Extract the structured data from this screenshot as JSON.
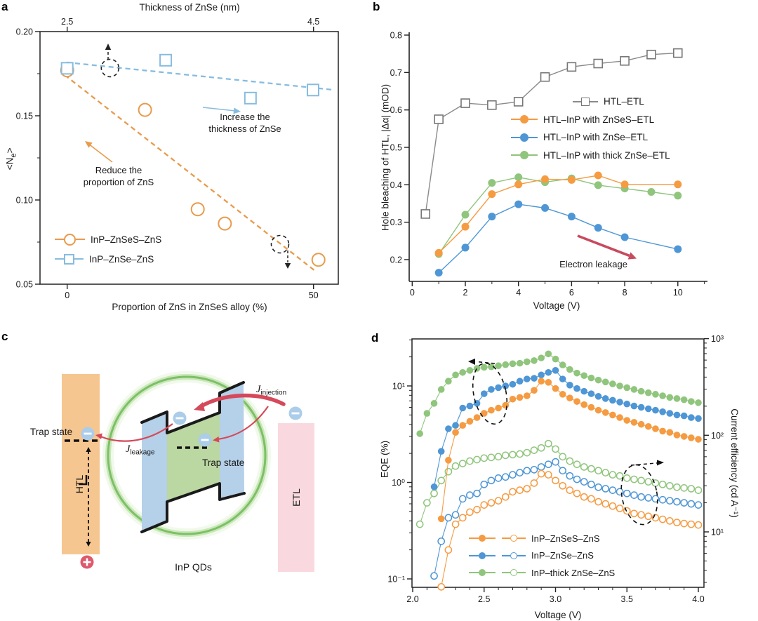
{
  "panels": {
    "a": {
      "letter": "a"
    },
    "b": {
      "letter": "b"
    },
    "c": {
      "letter": "c",
      "trap_state_left": "Trap state",
      "trap_state_core": "Trap state",
      "htl": "HTL",
      "etl": "ETL",
      "inp_qds": "InP QDs",
      "j_injection_main": "J",
      "j_injection_sub": "injection",
      "j_leakage_main": "J",
      "j_leakage_sub": "leakage",
      "colors": {
        "htl": "#F6C690",
        "etl": "#F9D9DF",
        "shell": "#B5D0E9",
        "core": "#BBD7A2",
        "ring": "#7CC066",
        "ring_glow1": "#ABD893",
        "ring_glow2": "#D6EDC7",
        "electron": "#ABCDEA",
        "hole": "#E0586C",
        "arrow": "#D5495A"
      }
    },
    "d": {
      "letter": "d"
    }
  },
  "chart_data": [
    {
      "id": "a",
      "type": "scatter",
      "title": "",
      "xlabel": "Proportion of ZnS in ZnSeS alloy (%)",
      "x2label": "Thickness of ZnSe (nm)",
      "ylabel_pre": "<N",
      "ylabel_sub": "e",
      "ylabel_post": ">",
      "xlim": [
        -5.5,
        55
      ],
      "ylim": [
        0.05,
        0.2
      ],
      "grid": false,
      "legend_position": "lower-left",
      "yticks": [
        {
          "v": 0.05,
          "l": "0.05"
        },
        {
          "v": 0.1,
          "l": "0.10"
        },
        {
          "v": 0.15,
          "l": "0.15"
        },
        {
          "v": 0.2,
          "l": "0.20"
        }
      ],
      "yticks_minor": [
        0.075,
        0.125,
        0.175
      ],
      "xticks": [
        {
          "v": 0,
          "l": "0"
        },
        {
          "v": 50,
          "l": "50"
        }
      ],
      "x2ticks": [
        {
          "v": 0,
          "l": "2.5"
        },
        {
          "v": 50,
          "l": "4.5"
        }
      ],
      "series": [
        {
          "name": "InP–ZnSeS–ZnS",
          "marker": "circle-open",
          "color": "#E89B4C",
          "points": [
            [
              0,
              0.177
            ],
            [
              15.8,
              0.1535
            ],
            [
              26.5,
              0.0945
            ],
            [
              32,
              0.086
            ],
            [
              51,
              0.0645
            ]
          ],
          "trend": [
            [
              -0.5,
              0.1742
            ],
            [
              50.5,
              0.0575
            ]
          ]
        },
        {
          "name": "InP–ZnSe–ZnS",
          "marker": "square-open",
          "color": "#87BCE0",
          "points": [
            [
              0,
              0.1782
            ],
            [
              20,
              0.183
            ],
            [
              37.2,
              0.1605
            ],
            [
              49.9,
              0.1653
            ]
          ],
          "trend": [
            [
              -0.1,
              0.1817
            ],
            [
              53.7,
              0.1655
            ]
          ]
        }
      ],
      "highlights": [
        {
          "x": 8.7,
          "y": 0.1783,
          "arrow": "up"
        },
        {
          "x": 43.2,
          "y": 0.0737,
          "arrow": "down"
        }
      ],
      "annotations": {
        "increase": [
          "Increase the",
          "thickness of ZnSe"
        ],
        "reduce": [
          "Reduce the",
          "proportion of ZnS"
        ]
      }
    },
    {
      "id": "b",
      "type": "line",
      "title": "",
      "xlabel": "Voltage (V)",
      "ylabel": "Hole bleaching of HTL, |Δα| (mOD)",
      "xlim": [
        -0.1,
        11.1
      ],
      "ylim": [
        0.14,
        0.81
      ],
      "grid": false,
      "legend_position": "upper-right",
      "arrow_color": "#C84A5E",
      "yticks": [
        {
          "v": 0.2,
          "l": "0.2"
        },
        {
          "v": 0.3,
          "l": "0.3"
        },
        {
          "v": 0.4,
          "l": "0.4"
        },
        {
          "v": 0.5,
          "l": "0.5"
        },
        {
          "v": 0.6,
          "l": "0.6"
        },
        {
          "v": 0.7,
          "l": "0.7"
        },
        {
          "v": 0.8,
          "l": "0.8"
        }
      ],
      "xticks": [
        {
          "v": 0,
          "l": "0"
        },
        {
          "v": 2,
          "l": "2"
        },
        {
          "v": 4,
          "l": "4"
        },
        {
          "v": 6,
          "l": "6"
        },
        {
          "v": 8,
          "l": "8"
        },
        {
          "v": 10,
          "l": "10"
        }
      ],
      "xticks_minor": [
        1,
        3,
        5,
        7,
        9,
        11
      ],
      "series": [
        {
          "name": "HTL–ETL",
          "color": "#8A8A8A",
          "marker": "square-open",
          "points": [
            [
              0.5,
              0.322
            ],
            [
              1,
              0.575
            ],
            [
              2,
              0.618
            ],
            [
              3,
              0.613
            ],
            [
              4,
              0.622
            ],
            [
              5,
              0.688
            ],
            [
              6,
              0.715
            ],
            [
              7,
              0.724
            ],
            [
              8,
              0.731
            ],
            [
              9,
              0.748
            ],
            [
              10,
              0.752
            ]
          ]
        },
        {
          "name": "HTL–InP with thick ZnSe–ETL",
          "color": "#8FC57C",
          "marker": "circle",
          "points": [
            [
              1,
              0.215
            ],
            [
              2,
              0.32
            ],
            [
              3,
              0.405
            ],
            [
              4,
              0.42
            ],
            [
              5,
              0.407
            ],
            [
              6,
              0.417
            ],
            [
              7,
              0.399
            ],
            [
              8,
              0.39
            ],
            [
              9,
              0.381
            ],
            [
              10,
              0.371
            ]
          ]
        },
        {
          "name": "HTL–InP with ZnSeS–ETL",
          "color": "#F59B42",
          "marker": "circle",
          "points": [
            [
              1,
              0.218
            ],
            [
              2,
              0.288
            ],
            [
              3,
              0.375
            ],
            [
              4,
              0.401
            ],
            [
              5,
              0.415
            ],
            [
              6,
              0.413
            ],
            [
              7,
              0.425
            ],
            [
              8,
              0.401
            ],
            [
              10,
              0.401
            ]
          ]
        },
        {
          "name": "HTL–InP with ZnSe–ETL",
          "color": "#4E96D5",
          "marker": "circle",
          "points": [
            [
              1,
              0.165
            ],
            [
              2,
              0.232
            ],
            [
              3,
              0.315
            ],
            [
              4,
              0.348
            ],
            [
              5,
              0.338
            ],
            [
              6,
              0.315
            ],
            [
              7,
              0.285
            ],
            [
              8,
              0.26
            ],
            [
              10,
              0.228
            ]
          ]
        }
      ],
      "legend_order": [
        "HTL–ETL",
        "HTL–InP with ZnSeS–ETL",
        "HTL–InP with ZnSe–ETL",
        "HTL–InP with thick ZnSe–ETL"
      ],
      "annotations": {
        "leakage": "Electron leakage"
      }
    },
    {
      "id": "d",
      "type": "line",
      "title": "",
      "xlabel": "Voltage (V)",
      "ylabel_left": "EQE (%)",
      "ylabel_right": "Current efficiency (cd A⁻¹)",
      "xlim": [
        2.0,
        4.04
      ],
      "ylim_left": [
        0.08,
        31
      ],
      "ylim_right": [
        2.7,
        1000
      ],
      "yscale": "log",
      "grid": false,
      "legend_position": "lower-center",
      "xticks": [
        {
          "v": 2,
          "l": "2.0"
        },
        {
          "v": 2.5,
          "l": "2.5"
        },
        {
          "v": 3,
          "l": "3.0"
        },
        {
          "v": 3.5,
          "l": "3.5"
        },
        {
          "v": 4,
          "l": "4.0"
        }
      ],
      "xticks_minor": [
        2.1,
        2.2,
        2.3,
        2.4,
        2.6,
        2.7,
        2.8,
        2.9,
        3.1,
        3.2,
        3.3,
        3.4,
        3.6,
        3.7,
        3.8,
        3.9
      ],
      "yticks_left": [
        {
          "v": 0.1,
          "l": "10⁻¹"
        },
        {
          "v": 1,
          "l": "10⁰"
        },
        {
          "v": 10,
          "l": "10¹"
        }
      ],
      "yticks_left_minor": [
        0.2,
        0.3,
        0.4,
        0.5,
        0.6,
        0.7,
        0.8,
        0.9,
        2,
        3,
        4,
        5,
        6,
        7,
        8,
        9,
        20,
        30
      ],
      "yticks_right": [
        {
          "v": 10,
          "l": "10¹"
        },
        {
          "v": 100,
          "l": "10²"
        },
        {
          "v": 1000,
          "l": "10³"
        }
      ],
      "yticks_right_minor": [
        3,
        4,
        5,
        6,
        7,
        8,
        9,
        20,
        30,
        40,
        50,
        60,
        70,
        80,
        90,
        200,
        300,
        400,
        500,
        600,
        700,
        800,
        900
      ],
      "legend": [
        {
          "label": "InP–ZnSeS–ZnS",
          "color": "#F59B42"
        },
        {
          "label": "InP–ZnSe–ZnS",
          "color": "#4E96D5"
        },
        {
          "label": "InP–thick ZnSe–ZnS",
          "color": "#8FC57C"
        }
      ],
      "series": [
        {
          "name": "InP–thick ZnSe–ZnS current efficiency",
          "color": "#8FC57C",
          "axis": "right",
          "marker": "open",
          "x0": 2.05,
          "dx": 0.05,
          "values": [
            12,
            20,
            25,
            34,
            42,
            48,
            51,
            54,
            56,
            58,
            59,
            60,
            62,
            63,
            64,
            66,
            70,
            74,
            82,
            72,
            60,
            54,
            50,
            47,
            45,
            43,
            41,
            39,
            38,
            36,
            35,
            34,
            33,
            32,
            31,
            30,
            29,
            28.5,
            28,
            27
          ]
        },
        {
          "name": "InP–ZnSe–ZnS current efficiency",
          "color": "#4E96D5",
          "axis": "right",
          "marker": "open",
          "x0": 2.15,
          "dx": 0.05,
          "values": [
            3.5,
            8,
            14,
            15,
            22,
            24,
            25,
            31,
            34,
            36,
            37,
            39,
            41,
            43,
            44,
            47,
            50,
            53,
            43,
            38,
            35,
            33,
            31,
            29,
            28,
            27,
            26,
            25,
            24,
            23,
            22.5,
            22,
            21.5,
            21,
            20.5,
            20,
            19.5,
            19
          ]
        },
        {
          "name": "InP–ZnSeS–ZnS current efficiency",
          "color": "#F59B42",
          "axis": "right",
          "marker": "open",
          "x0": 2.2,
          "dx": 0.05,
          "values": [
            2.7,
            6.5,
            12,
            14,
            16,
            17,
            19,
            20,
            21,
            23,
            26,
            27,
            28,
            32,
            40,
            39,
            34,
            30,
            27,
            25,
            23,
            22,
            20.5,
            19.5,
            18.5,
            17.5,
            16.5,
            15.5,
            15,
            14.5,
            14,
            13.5,
            13,
            12.5,
            12.2,
            12,
            11.8
          ]
        },
        {
          "name": "InP–thick ZnSe–ZnS EQE",
          "color": "#8FC57C",
          "axis": "left",
          "marker": "filled",
          "x0": 2.05,
          "dx": 0.05,
          "values": [
            3.2,
            5.2,
            6.6,
            9.2,
            11.2,
            13,
            13.8,
            14.5,
            15.2,
            15.6,
            15.8,
            16.2,
            16.6,
            17,
            17.2,
            17.8,
            18.3,
            19.5,
            21.5,
            19,
            16.5,
            14.8,
            13.6,
            12.8,
            12.1,
            11.5,
            11,
            10.5,
            10,
            9.6,
            9.2,
            8.8,
            8.5,
            8.2,
            7.9,
            7.6,
            7.4,
            7.2,
            6.9,
            6.7
          ]
        },
        {
          "name": "InP–ZnSe–ZnS EQE",
          "color": "#4E96D5",
          "axis": "left",
          "marker": "filled",
          "x0": 2.15,
          "dx": 0.05,
          "values": [
            0.9,
            2.1,
            3.6,
            3.9,
            5.9,
            6.2,
            6.6,
            8.3,
            9.2,
            9.6,
            10,
            10.4,
            11.2,
            11.8,
            12,
            13,
            13.8,
            14.5,
            11.8,
            10.2,
            9.4,
            8.8,
            8.3,
            7.8,
            7.4,
            7.1,
            6.8,
            6.5,
            6.2,
            6,
            5.8,
            5.6,
            5.4,
            5.2,
            5,
            4.9,
            4.7,
            4.6
          ]
        },
        {
          "name": "InP–ZnSeS–ZnS EQE",
          "color": "#F59B42",
          "axis": "left",
          "marker": "filled",
          "x0": 2.2,
          "dx": 0.05,
          "values": [
            0.42,
            1.7,
            3.3,
            3.9,
            4.3,
            4.7,
            5.2,
            5.6,
            5.9,
            6.3,
            7.3,
            7.6,
            7.9,
            9,
            11.2,
            10.9,
            9.4,
            8.2,
            7.5,
            6.9,
            6.4,
            6,
            5.6,
            5.3,
            5,
            4.7,
            4.4,
            4.2,
            4,
            3.8,
            3.6,
            3.4,
            3.3,
            3.1,
            3,
            2.9,
            2.8
          ]
        }
      ]
    }
  ]
}
